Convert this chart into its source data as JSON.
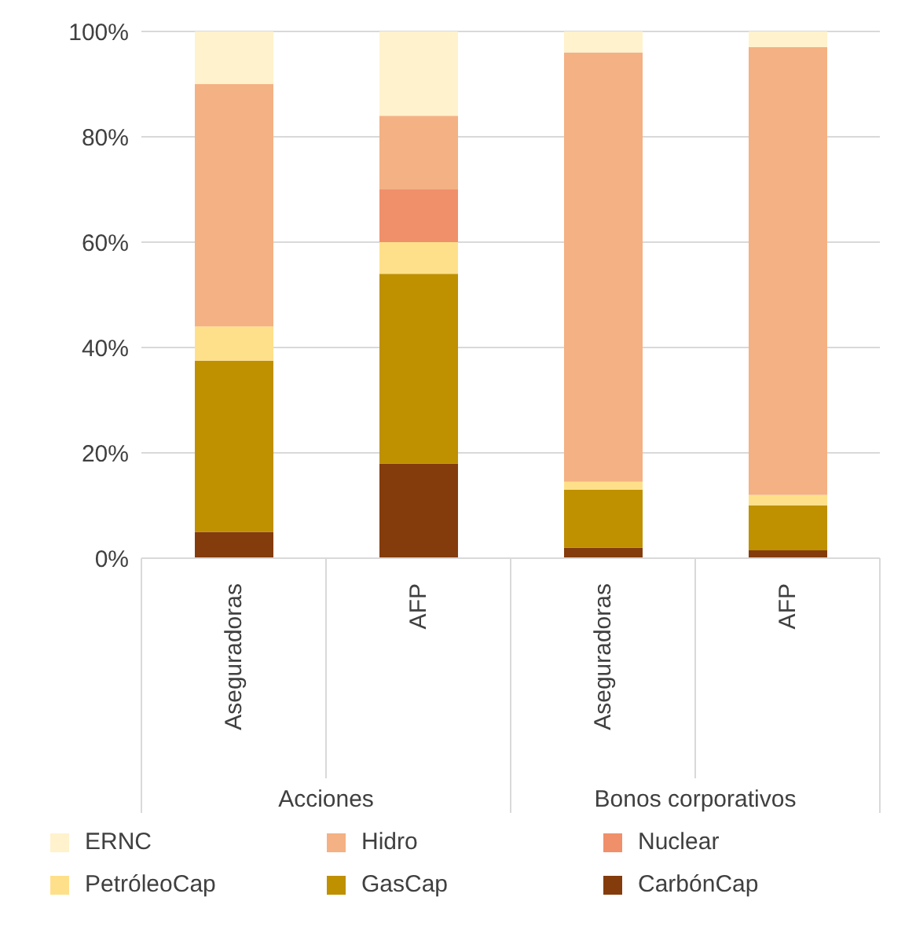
{
  "chart_data": {
    "type": "bar",
    "stacked": true,
    "categories": [
      "Aseguradoras",
      "AFP",
      "Aseguradoras",
      "AFP"
    ],
    "annotations": [
      "Acciones",
      "Bonos corporativos"
    ],
    "series": [
      {
        "name": "CarbónCap",
        "color": "#843c0c",
        "values": [
          5,
          18,
          2,
          1.5
        ]
      },
      {
        "name": "GasCap",
        "color": "#bf9000",
        "values": [
          32.5,
          36,
          11,
          8.5
        ]
      },
      {
        "name": "PetróleoCap",
        "color": "#ffe08a",
        "values": [
          6.5,
          6,
          1.5,
          2
        ]
      },
      {
        "name": "Nuclear",
        "color": "#f0906a",
        "values": [
          0,
          10,
          0,
          0
        ]
      },
      {
        "name": "Hidro",
        "color": "#f4b183",
        "values": [
          46,
          14,
          81.5,
          85
        ]
      },
      {
        "name": "ERNC",
        "color": "#fff2cc",
        "values": [
          10,
          16,
          4,
          3
        ]
      }
    ],
    "ylim": [
      0,
      100
    ],
    "yticks": [
      {
        "value": 0,
        "label": "0%"
      },
      {
        "value": 20,
        "label": "20%"
      },
      {
        "value": 40,
        "label": "40%"
      },
      {
        "value": 60,
        "label": "60%"
      },
      {
        "value": 80,
        "label": "80%"
      },
      {
        "value": 100,
        "label": "100%"
      }
    ],
    "grid": "y",
    "legend": "bottom"
  }
}
